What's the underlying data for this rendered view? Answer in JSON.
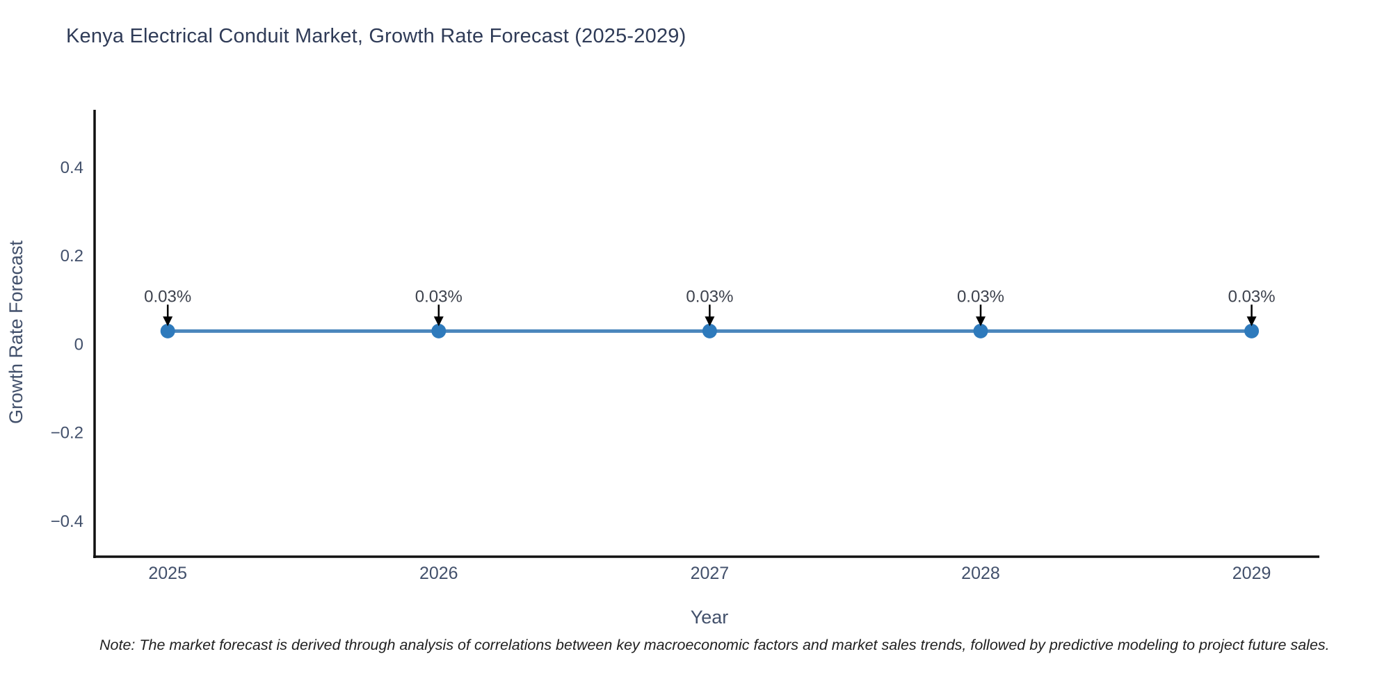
{
  "chart_data": {
    "type": "line",
    "title": "Kenya Electrical Conduit Market, Growth Rate Forecast (2025-2029)",
    "xlabel": "Year",
    "ylabel": "Growth Rate Forecast",
    "x": [
      2025,
      2026,
      2027,
      2028,
      2029
    ],
    "x_tick_labels": [
      "2025",
      "2026",
      "2027",
      "2028",
      "2029"
    ],
    "series": [
      {
        "name": "Growth Rate Forecast",
        "values": [
          0.03,
          0.03,
          0.03,
          0.03,
          0.03
        ]
      }
    ],
    "annotations": [
      "0.03%",
      "0.03%",
      "0.03%",
      "0.03%",
      "0.03%"
    ],
    "y_ticks": [
      0.4,
      0.2,
      0,
      -0.2,
      -0.4
    ],
    "ylim": [
      -0.48,
      0.53
    ],
    "xlim": [
      2024.73,
      2029.25
    ],
    "grid": false,
    "legend": "none",
    "colors": {
      "line": "#4a86bc",
      "marker": "#2e7abc",
      "axis": "#111111",
      "tick_label": "#42506b",
      "title": "#2f3b57",
      "annotation": "#3d424d",
      "arrow": "#000000",
      "note": "#1f1f1f"
    }
  },
  "note": {
    "text": "Note: The market forecast is derived through analysis of correlations between key macroeconomic factors and market sales trends, followed by predictive modeling to project future sales."
  }
}
